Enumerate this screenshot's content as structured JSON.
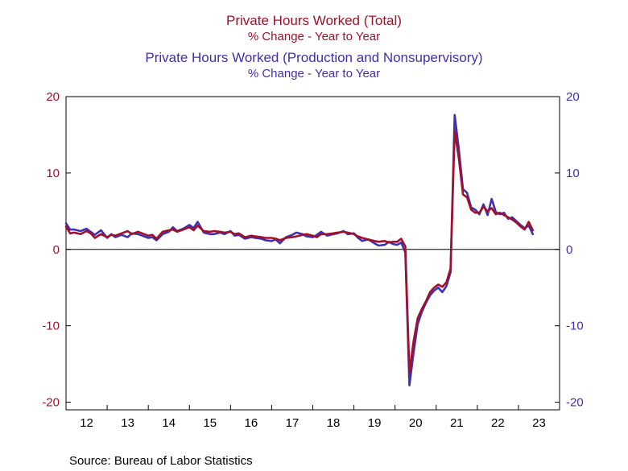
{
  "chart_data": {
    "type": "line",
    "title_lines": [
      {
        "text": "Private Hours Worked (Total)",
        "series": 0
      },
      {
        "text": "% Change - Year to Year",
        "series": 0
      },
      {
        "text": "Private Hours Worked (Production and Nonsupervisory)",
        "series": 1
      },
      {
        "text": "% Change - Year to Year",
        "series": 1
      }
    ],
    "source": "Source:  Bureau of Labor Statistics",
    "xlabel": "",
    "ylabel": "",
    "x_tick_labels": [
      "12",
      "13",
      "14",
      "15",
      "16",
      "17",
      "18",
      "19",
      "20",
      "21",
      "22",
      "23"
    ],
    "x_range": [
      2012,
      2024
    ],
    "ylim": [
      -21,
      20
    ],
    "y_ticks": [
      -20,
      -10,
      0,
      10,
      20
    ],
    "y_tick_labels_left": [
      "-20",
      "-10",
      "0",
      "10",
      "20"
    ],
    "y_tick_labels_right": [
      "-20",
      "-10",
      "0",
      "10",
      "20"
    ],
    "zero_line": true,
    "grid": false,
    "series": [
      {
        "color": "#a0102a",
        "points": [
          [
            2012.0,
            3.0
          ],
          [
            2012.1,
            2.1
          ],
          [
            2012.2,
            2.2
          ],
          [
            2012.35,
            2.0
          ],
          [
            2012.5,
            2.4
          ],
          [
            2012.6,
            2.1
          ],
          [
            2012.7,
            1.5
          ],
          [
            2012.85,
            2.0
          ],
          [
            2013.0,
            1.6
          ],
          [
            2013.1,
            1.9
          ],
          [
            2013.2,
            1.8
          ],
          [
            2013.35,
            2.1
          ],
          [
            2013.5,
            2.4
          ],
          [
            2013.6,
            2.0
          ],
          [
            2013.75,
            2.3
          ],
          [
            2013.85,
            2.1
          ],
          [
            2014.0,
            1.8
          ],
          [
            2014.1,
            1.9
          ],
          [
            2014.2,
            1.4
          ],
          [
            2014.35,
            2.3
          ],
          [
            2014.5,
            2.5
          ],
          [
            2014.6,
            2.6
          ],
          [
            2014.7,
            2.3
          ],
          [
            2014.85,
            2.6
          ],
          [
            2015.0,
            2.9
          ],
          [
            2015.1,
            2.5
          ],
          [
            2015.2,
            3.1
          ],
          [
            2015.35,
            2.4
          ],
          [
            2015.5,
            2.3
          ],
          [
            2015.6,
            2.4
          ],
          [
            2015.75,
            2.3
          ],
          [
            2015.85,
            2.2
          ],
          [
            2016.0,
            2.3
          ],
          [
            2016.1,
            2.0
          ],
          [
            2016.2,
            2.1
          ],
          [
            2016.35,
            1.6
          ],
          [
            2016.5,
            1.8
          ],
          [
            2016.6,
            1.7
          ],
          [
            2016.75,
            1.6
          ],
          [
            2016.85,
            1.5
          ],
          [
            2017.0,
            1.5
          ],
          [
            2017.1,
            1.4
          ],
          [
            2017.2,
            1.2
          ],
          [
            2017.35,
            1.5
          ],
          [
            2017.5,
            1.6
          ],
          [
            2017.6,
            1.7
          ],
          [
            2017.75,
            1.9
          ],
          [
            2017.85,
            2.0
          ],
          [
            2018.0,
            1.8
          ],
          [
            2018.1,
            1.6
          ],
          [
            2018.2,
            2.0
          ],
          [
            2018.35,
            2.0
          ],
          [
            2018.5,
            2.1
          ],
          [
            2018.6,
            2.2
          ],
          [
            2018.75,
            2.3
          ],
          [
            2018.85,
            2.2
          ],
          [
            2019.0,
            2.0
          ],
          [
            2019.1,
            1.7
          ],
          [
            2019.2,
            1.5
          ],
          [
            2019.35,
            1.3
          ],
          [
            2019.5,
            1.1
          ],
          [
            2019.6,
            1.0
          ],
          [
            2019.75,
            1.1
          ],
          [
            2019.85,
            0.9
          ],
          [
            2019.95,
            1.0
          ],
          [
            2020.05,
            1.0
          ],
          [
            2020.15,
            1.4
          ],
          [
            2020.25,
            0.4
          ],
          [
            2020.35,
            -16.2
          ],
          [
            2020.45,
            -12.0
          ],
          [
            2020.55,
            -9.0
          ],
          [
            2020.65,
            -7.8
          ],
          [
            2020.75,
            -6.8
          ],
          [
            2020.85,
            -5.6
          ],
          [
            2020.95,
            -5.0
          ],
          [
            2021.05,
            -4.6
          ],
          [
            2021.15,
            -4.9
          ],
          [
            2021.25,
            -4.3
          ],
          [
            2021.35,
            -2.5
          ],
          [
            2021.45,
            15.5
          ],
          [
            2021.55,
            12.0
          ],
          [
            2021.65,
            7.2
          ],
          [
            2021.75,
            6.8
          ],
          [
            2021.85,
            5.2
          ],
          [
            2021.95,
            4.8
          ],
          [
            2022.05,
            4.8
          ],
          [
            2022.15,
            5.6
          ],
          [
            2022.25,
            5.0
          ],
          [
            2022.35,
            5.4
          ],
          [
            2022.45,
            4.6
          ],
          [
            2022.55,
            4.8
          ],
          [
            2022.65,
            4.5
          ],
          [
            2022.75,
            4.2
          ],
          [
            2022.85,
            3.9
          ],
          [
            2022.95,
            3.5
          ],
          [
            2023.05,
            3.0
          ],
          [
            2023.15,
            2.6
          ],
          [
            2023.25,
            3.6
          ],
          [
            2023.35,
            2.5
          ]
        ]
      },
      {
        "color": "#4030b0",
        "points": [
          [
            2012.0,
            3.4
          ],
          [
            2012.1,
            2.6
          ],
          [
            2012.2,
            2.6
          ],
          [
            2012.35,
            2.4
          ],
          [
            2012.5,
            2.7
          ],
          [
            2012.6,
            2.3
          ],
          [
            2012.7,
            1.9
          ],
          [
            2012.85,
            2.5
          ],
          [
            2013.0,
            1.5
          ],
          [
            2013.1,
            2.0
          ],
          [
            2013.2,
            1.6
          ],
          [
            2013.35,
            1.9
          ],
          [
            2013.5,
            1.6
          ],
          [
            2013.6,
            2.1
          ],
          [
            2013.75,
            2.0
          ],
          [
            2013.85,
            1.8
          ],
          [
            2014.0,
            1.5
          ],
          [
            2014.1,
            1.6
          ],
          [
            2014.2,
            1.2
          ],
          [
            2014.35,
            2.0
          ],
          [
            2014.5,
            2.3
          ],
          [
            2014.6,
            2.9
          ],
          [
            2014.7,
            2.4
          ],
          [
            2014.85,
            2.7
          ],
          [
            2015.0,
            3.2
          ],
          [
            2015.1,
            2.8
          ],
          [
            2015.2,
            3.6
          ],
          [
            2015.35,
            2.2
          ],
          [
            2015.5,
            2.0
          ],
          [
            2015.6,
            2.0
          ],
          [
            2015.75,
            2.2
          ],
          [
            2015.85,
            2.0
          ],
          [
            2016.0,
            2.4
          ],
          [
            2016.1,
            1.8
          ],
          [
            2016.2,
            1.9
          ],
          [
            2016.35,
            1.4
          ],
          [
            2016.5,
            1.6
          ],
          [
            2016.6,
            1.5
          ],
          [
            2016.75,
            1.4
          ],
          [
            2016.85,
            1.2
          ],
          [
            2017.0,
            1.1
          ],
          [
            2017.1,
            1.3
          ],
          [
            2017.2,
            0.8
          ],
          [
            2017.35,
            1.6
          ],
          [
            2017.5,
            1.9
          ],
          [
            2017.6,
            2.2
          ],
          [
            2017.75,
            2.0
          ],
          [
            2017.85,
            1.7
          ],
          [
            2018.0,
            1.6
          ],
          [
            2018.1,
            1.9
          ],
          [
            2018.2,
            2.3
          ],
          [
            2018.35,
            1.8
          ],
          [
            2018.5,
            2.0
          ],
          [
            2018.6,
            2.1
          ],
          [
            2018.75,
            2.4
          ],
          [
            2018.85,
            2.0
          ],
          [
            2019.0,
            2.1
          ],
          [
            2019.1,
            1.5
          ],
          [
            2019.2,
            1.1
          ],
          [
            2019.35,
            1.3
          ],
          [
            2019.5,
            0.8
          ],
          [
            2019.6,
            0.5
          ],
          [
            2019.75,
            0.6
          ],
          [
            2019.85,
            1.0
          ],
          [
            2019.95,
            0.7
          ],
          [
            2020.05,
            0.6
          ],
          [
            2020.15,
            0.9
          ],
          [
            2020.25,
            -0.4
          ],
          [
            2020.35,
            -17.8
          ],
          [
            2020.45,
            -13.5
          ],
          [
            2020.55,
            -9.8
          ],
          [
            2020.65,
            -8.2
          ],
          [
            2020.75,
            -7.0
          ],
          [
            2020.85,
            -6.0
          ],
          [
            2020.95,
            -5.4
          ],
          [
            2021.05,
            -5.0
          ],
          [
            2021.15,
            -5.6
          ],
          [
            2021.25,
            -4.8
          ],
          [
            2021.35,
            -3.0
          ],
          [
            2021.45,
            17.6
          ],
          [
            2021.55,
            13.2
          ],
          [
            2021.65,
            7.9
          ],
          [
            2021.75,
            7.4
          ],
          [
            2021.85,
            5.5
          ],
          [
            2021.95,
            5.2
          ],
          [
            2022.05,
            4.6
          ],
          [
            2022.15,
            5.9
          ],
          [
            2022.25,
            4.5
          ],
          [
            2022.35,
            6.6
          ],
          [
            2022.45,
            4.9
          ],
          [
            2022.55,
            4.6
          ],
          [
            2022.65,
            4.8
          ],
          [
            2022.75,
            4.0
          ],
          [
            2022.85,
            4.2
          ],
          [
            2022.95,
            3.7
          ],
          [
            2023.05,
            3.2
          ],
          [
            2023.15,
            2.8
          ],
          [
            2023.25,
            3.1
          ],
          [
            2023.35,
            2.0
          ]
        ]
      }
    ]
  },
  "colors": {
    "total": "#a0102a",
    "production": "#4030b0",
    "axis": "#000000"
  }
}
